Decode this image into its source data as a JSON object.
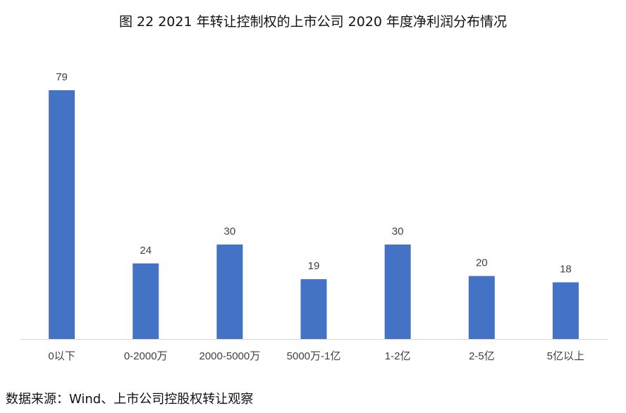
{
  "figure_title": "图 22 2021 年转让控制权的上市公司 2020 年度净利润分布情况",
  "source_note": "数据来源：Wind、上市公司控股权转让观察",
  "colors": {
    "bar": "#4472C4",
    "axis": "#D9D9D9",
    "text": "#404040"
  },
  "chart_data": {
    "type": "bar",
    "categories": [
      "0以下",
      "0-2000万",
      "2000-5000万",
      "5000万-1亿",
      "1-2亿",
      "2-5亿",
      "5亿以上"
    ],
    "values": [
      79,
      24,
      30,
      19,
      30,
      20,
      18
    ],
    "ylim": [
      0,
      79
    ],
    "grid": false,
    "legend": false,
    "data_labels": true
  }
}
